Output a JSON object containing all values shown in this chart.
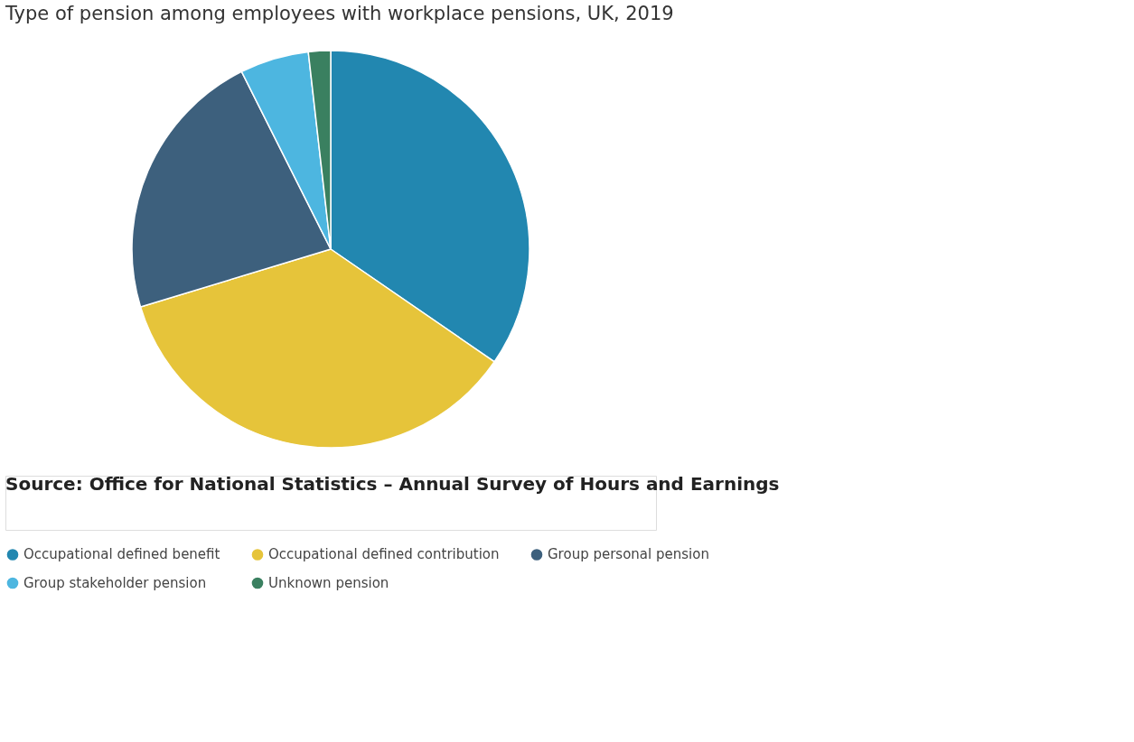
{
  "chart_data": {
    "type": "pie",
    "title": "Type of pension among employees with workplace pensions, UK, 2019",
    "categories": [
      "Occupational defined benefit",
      "Occupational defined contribution",
      "Group personal pension",
      "Group stakeholder pension",
      "Unknown pension"
    ],
    "values": [
      34.6,
      35.7,
      22.3,
      5.6,
      1.8
    ],
    "colors": [
      "#2287b0",
      "#e6c43a",
      "#3d607d",
      "#4db6e0",
      "#3a8060"
    ],
    "legend": "bottom",
    "annotations": [
      "Source: Office for National Statistics – Annual Survey of Hours and Earnings"
    ]
  }
}
